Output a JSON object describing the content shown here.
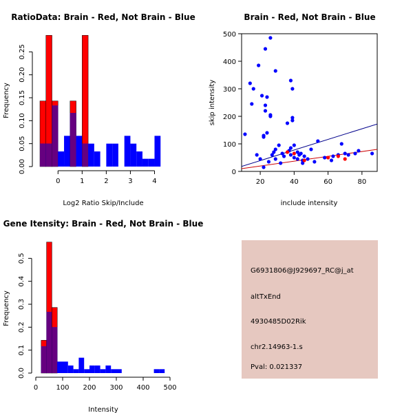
{
  "colors": {
    "red": "#ff0000",
    "blue": "#0000ff",
    "purple": "#660080",
    "info_bg": "#e6c8c0",
    "pval": "#8b0000",
    "red_line": "#cc0000",
    "blue_line": "#00008b"
  },
  "chart_data": [
    {
      "id": "ratio",
      "type": "histogram",
      "title": "RatioData: Brain - Red, Not Brain - Blue",
      "xlabel": "Log2 Ratio Skip/Include",
      "ylabel": "Frequency",
      "xlim": [
        -0.75,
        4.5
      ],
      "ylim": [
        0,
        0.3
      ],
      "xticks": [
        0,
        1,
        2,
        3,
        4
      ],
      "yticks": [
        0.0,
        0.05,
        0.1,
        0.15,
        0.2,
        0.25
      ],
      "bin_start": -0.75,
      "bin_width": 0.25,
      "series": [
        {
          "name": "Brain",
          "color": "red",
          "values": [
            0.143,
            0.286,
            0.143,
            0,
            0,
            0.143,
            0,
            0.286,
            0,
            0,
            0,
            0,
            0,
            0,
            0,
            0,
            0,
            0,
            0,
            0,
            0
          ]
        },
        {
          "name": "Not Brain",
          "color": "blue",
          "values": [
            0.05,
            0.05,
            0.133,
            0.033,
            0.067,
            0.117,
            0.067,
            0.05,
            0.05,
            0.033,
            0,
            0.05,
            0.05,
            0,
            0.067,
            0.05,
            0.033,
            0.017,
            0.017,
            0.067,
            0
          ]
        }
      ]
    },
    {
      "id": "scatter",
      "type": "scatter",
      "title": "Brain - Red, Not Brain - Blue",
      "xlabel": "include intensity",
      "ylabel": "skip intensity",
      "xlim": [
        9,
        89
      ],
      "ylim": [
        0,
        500
      ],
      "xticks": [
        20,
        40,
        60,
        80
      ],
      "yticks": [
        0,
        100,
        200,
        300,
        400,
        500
      ],
      "blue_points": [
        [
          11,
          135
        ],
        [
          14,
          320
        ],
        [
          15,
          245
        ],
        [
          16,
          300
        ],
        [
          18,
          60
        ],
        [
          19,
          385
        ],
        [
          21,
          275
        ],
        [
          22,
          125
        ],
        [
          22,
          130
        ],
        [
          23,
          445
        ],
        [
          23,
          240
        ],
        [
          23,
          220
        ],
        [
          24,
          270
        ],
        [
          24,
          140
        ],
        [
          25,
          35
        ],
        [
          26,
          485
        ],
        [
          26,
          205
        ],
        [
          26,
          200
        ],
        [
          27,
          60
        ],
        [
          28,
          70
        ],
        [
          29,
          365
        ],
        [
          29,
          80
        ],
        [
          29,
          45
        ],
        [
          31,
          95
        ],
        [
          32,
          30
        ],
        [
          33,
          65
        ],
        [
          34,
          55
        ],
        [
          36,
          175
        ],
        [
          37,
          75
        ],
        [
          38,
          330
        ],
        [
          38,
          85
        ],
        [
          38,
          60
        ],
        [
          39,
          300
        ],
        [
          39,
          195
        ],
        [
          39,
          185
        ],
        [
          40,
          95
        ],
        [
          40,
          50
        ],
        [
          42,
          45
        ],
        [
          42,
          70
        ],
        [
          43,
          60
        ],
        [
          44,
          65
        ],
        [
          45,
          40
        ],
        [
          45,
          30
        ],
        [
          46,
          55
        ],
        [
          48,
          45
        ],
        [
          50,
          80
        ],
        [
          52,
          35
        ],
        [
          54,
          110
        ],
        [
          58,
          50
        ],
        [
          62,
          40
        ],
        [
          63,
          55
        ],
        [
          66,
          60
        ],
        [
          68,
          100
        ],
        [
          70,
          65
        ],
        [
          72,
          60
        ],
        [
          76,
          65
        ],
        [
          78,
          75
        ],
        [
          86,
          65
        ],
        [
          22,
          15
        ],
        [
          20,
          45
        ]
      ],
      "red_points": [
        [
          36,
          70
        ],
        [
          40,
          65
        ],
        [
          46,
          40
        ],
        [
          60,
          50
        ],
        [
          66,
          55
        ],
        [
          70,
          45
        ]
      ],
      "blue_line": [
        [
          9,
          18
        ],
        [
          89,
          172
        ]
      ],
      "red_line": [
        [
          9,
          10
        ],
        [
          89,
          80
        ]
      ]
    },
    {
      "id": "intensity",
      "type": "histogram",
      "title": "Gene Itensity: Brain - Red, Not Brain - Blue",
      "xlabel": "Intensity",
      "ylabel": "Frequency",
      "xlim": [
        0,
        500
      ],
      "ylim": [
        0,
        0.6
      ],
      "xticks": [
        0,
        100,
        200,
        300,
        400,
        500
      ],
      "yticks": [
        0.0,
        0.1,
        0.2,
        0.3,
        0.4,
        0.5
      ],
      "bin_start": 20,
      "bin_width": 20,
      "series": [
        {
          "name": "Brain",
          "color": "red",
          "values": [
            0.143,
            0.571,
            0.286,
            0,
            0,
            0,
            0,
            0,
            0,
            0,
            0,
            0,
            0,
            0,
            0,
            0,
            0,
            0,
            0,
            0,
            0,
            0,
            0
          ]
        },
        {
          "name": "Not Brain",
          "color": "blue",
          "values": [
            0.117,
            0.267,
            0.2,
            0.05,
            0.05,
            0.033,
            0.017,
            0.067,
            0.017,
            0.033,
            0.033,
            0.017,
            0.033,
            0.017,
            0.017,
            0,
            0,
            0,
            0,
            0,
            0,
            0.017,
            0.017
          ]
        }
      ]
    }
  ],
  "info_box": {
    "probe_id": "G6931806@J929697_RC@j_at",
    "event_type": "altTxEnd",
    "gene": "4930485D02Rik",
    "location": "chr2.14963-1.s",
    "pval": "Pval: 0.021337"
  }
}
